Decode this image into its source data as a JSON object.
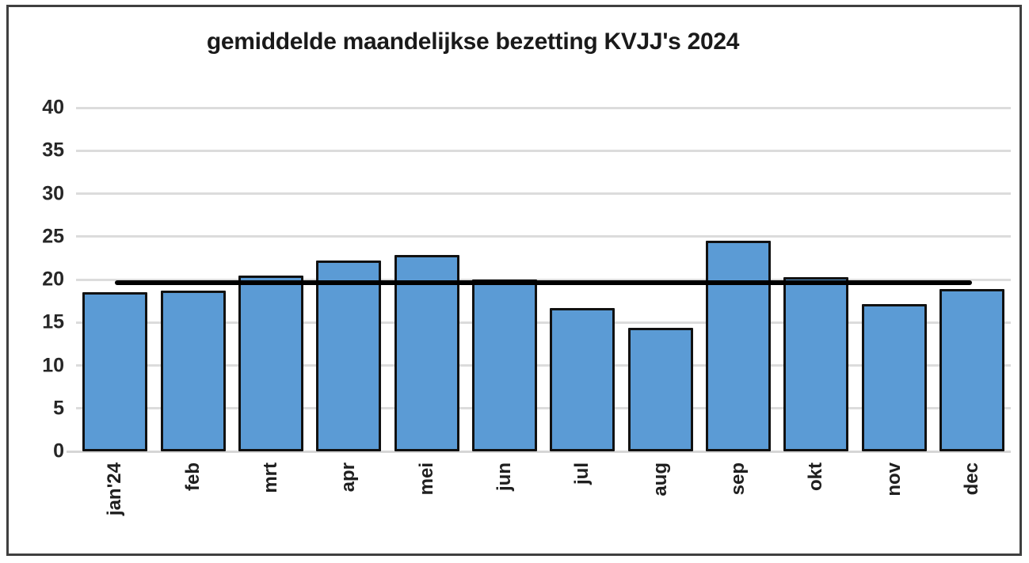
{
  "chart_data": {
    "type": "bar",
    "title": "gemiddelde maandelijkse bezetting KVJJ's 2024",
    "categories": [
      "jan'24",
      "feb",
      "mrt",
      "apr",
      "mei",
      "jun",
      "jul",
      "aug",
      "sep",
      "okt",
      "nov",
      "dec"
    ],
    "values": [
      18.5,
      18.7,
      20.5,
      22.2,
      22.9,
      20.0,
      16.7,
      14.4,
      24.5,
      20.3,
      17.1,
      18.9
    ],
    "reference_line_value": 19.6,
    "xlabel": "",
    "ylabel": "",
    "ylim": [
      0,
      40
    ],
    "yticks": [
      0,
      5,
      10,
      15,
      20,
      25,
      30,
      35,
      40
    ],
    "grid": true,
    "legend": false,
    "colors": {
      "bar_fill": "#5b9bd5",
      "bar_border": "#111111",
      "gridline": "#dcdcdc",
      "axis_line": "#d6d6d6",
      "reference_line": "#000000",
      "axis_text": "#262626",
      "title_text": "#1a1a1a",
      "frame_border": "#3f3f3f"
    }
  }
}
